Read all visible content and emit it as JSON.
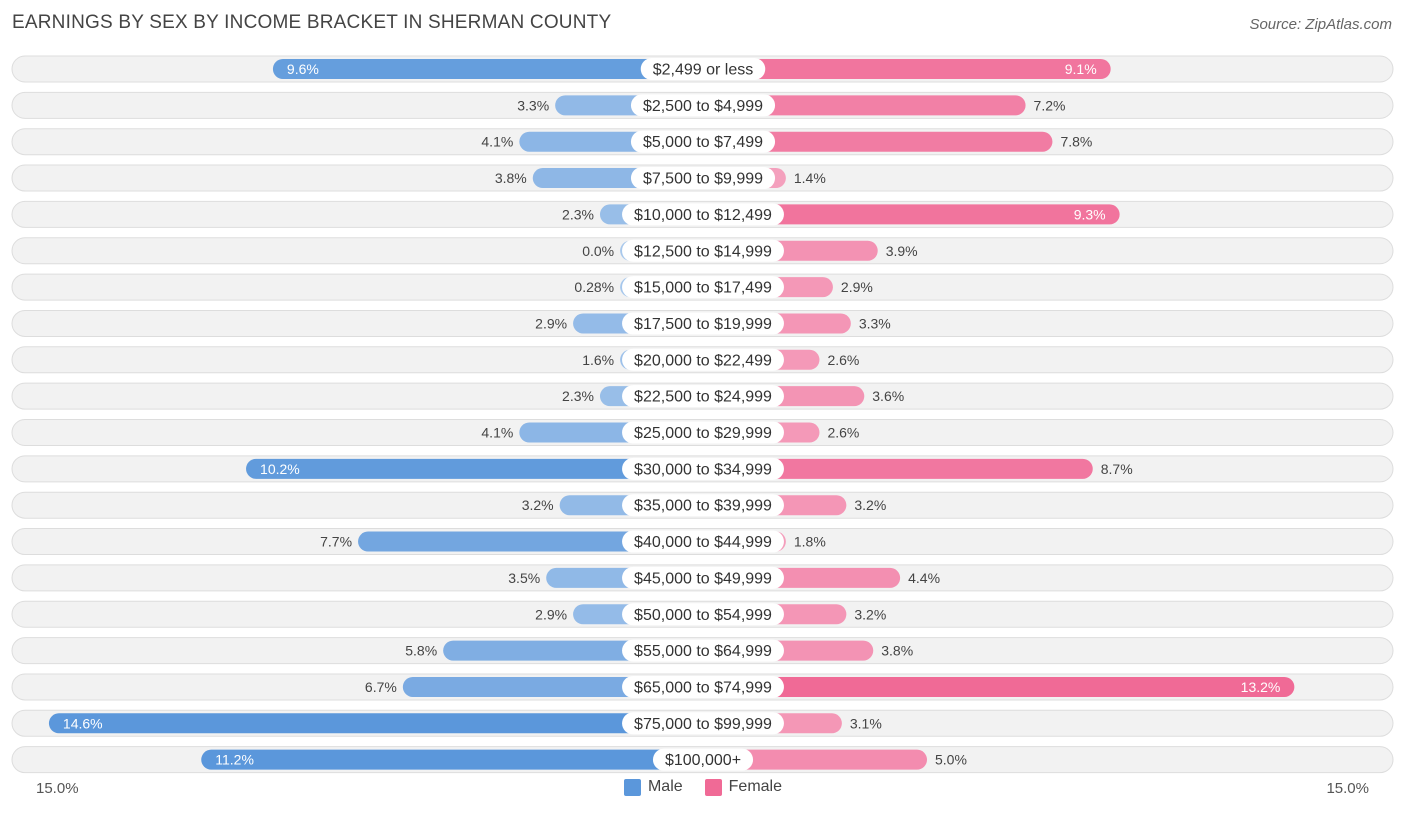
{
  "title": "EARNINGS BY SEX BY INCOME BRACKET IN SHERMAN COUNTY",
  "source": "Source: ZipAtlas.com",
  "axis": {
    "left_label": "15.0%",
    "right_label": "15.0%"
  },
  "legend": {
    "male": "Male",
    "female": "Female"
  },
  "colors": {
    "male_light": "#a8c8ec",
    "male_dark": "#5b97db",
    "female_light": "#f5a8c3",
    "female_dark": "#f06a96",
    "row_bg": "#f2f2f2",
    "row_border": "#dddddd"
  },
  "chart_data": {
    "type": "bar",
    "orientation": "horizontal-diverging",
    "title": "EARNINGS BY SEX BY INCOME BRACKET IN SHERMAN COUNTY",
    "xlim": [
      -15.0,
      15.0
    ],
    "categories": [
      "$2,499 or less",
      "$2,500 to $4,999",
      "$5,000 to $7,499",
      "$7,500 to $9,999",
      "$10,000 to $12,499",
      "$12,500 to $14,999",
      "$15,000 to $17,499",
      "$17,500 to $19,999",
      "$20,000 to $22,499",
      "$22,500 to $24,999",
      "$25,000 to $29,999",
      "$30,000 to $34,999",
      "$35,000 to $39,999",
      "$40,000 to $44,999",
      "$45,000 to $49,999",
      "$50,000 to $54,999",
      "$55,000 to $64,999",
      "$65,000 to $74,999",
      "$75,000 to $99,999",
      "$100,000+"
    ],
    "series": [
      {
        "name": "Male",
        "values": [
          9.6,
          3.3,
          4.1,
          3.8,
          2.3,
          0.0,
          0.28,
          2.9,
          1.6,
          2.3,
          4.1,
          10.2,
          3.2,
          7.7,
          3.5,
          2.9,
          5.8,
          6.7,
          14.6,
          11.2
        ],
        "labels": [
          "9.6%",
          "3.3%",
          "4.1%",
          "3.8%",
          "2.3%",
          "0.0%",
          "0.28%",
          "2.9%",
          "1.6%",
          "2.3%",
          "4.1%",
          "10.2%",
          "3.2%",
          "7.7%",
          "3.5%",
          "2.9%",
          "5.8%",
          "6.7%",
          "14.6%",
          "11.2%"
        ]
      },
      {
        "name": "Female",
        "values": [
          9.1,
          7.2,
          7.8,
          1.4,
          9.3,
          3.9,
          2.9,
          3.3,
          2.6,
          3.6,
          2.6,
          8.7,
          3.2,
          1.8,
          4.4,
          3.2,
          3.8,
          13.2,
          3.1,
          5.0
        ],
        "labels": [
          "9.1%",
          "7.2%",
          "7.8%",
          "1.4%",
          "9.3%",
          "3.9%",
          "2.9%",
          "3.3%",
          "2.6%",
          "3.6%",
          "2.6%",
          "8.7%",
          "3.2%",
          "1.8%",
          "4.4%",
          "3.2%",
          "3.8%",
          "13.2%",
          "3.1%",
          "5.0%"
        ]
      }
    ]
  }
}
